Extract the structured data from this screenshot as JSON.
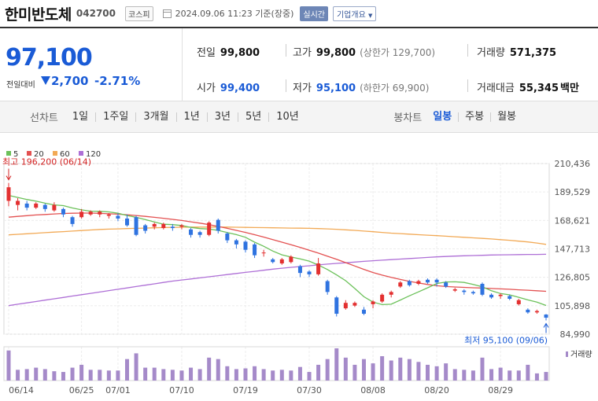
{
  "header": {
    "name": "한미반도체",
    "code": "042700",
    "market": "코스피",
    "datetime": "2024.09.06 11:23 기준(장중)",
    "realtime": "실시간",
    "company_info": "기업개요"
  },
  "quote": {
    "price": "97,100",
    "change_label": "전일대비",
    "change": "2,700",
    "rate": "-2.71%",
    "prev_label": "전일",
    "prev": "99,800",
    "open_label": "시가",
    "open": "99,400",
    "high_label": "고가",
    "high": "99,800",
    "upper_limit": "(상한가 129,700)",
    "low_label": "저가",
    "low": "95,100",
    "lower_limit": "(하한가 69,900)",
    "volume_label": "거래량",
    "volume": "571,375",
    "amount_label": "거래대금",
    "amount": "55,345",
    "amount_unit": "백만"
  },
  "period": {
    "label": "선차트",
    "items": [
      "1일",
      "1주일",
      "3개월",
      "1년",
      "3년",
      "5년",
      "10년"
    ],
    "bong_label": "봉차트",
    "bong_items": [
      "일봉",
      "주봉",
      "월봉"
    ],
    "bong_active": "일봉"
  },
  "colors": {
    "ma5": "#6cc15a",
    "ma20": "#e35151",
    "ma60": "#f2a955",
    "ma120": "#ae6fd6",
    "up": "#e33030",
    "down": "#2f73e0",
    "volume": "#a58ac9"
  },
  "chart_data": {
    "type": "candlestick",
    "legend": [
      "5",
      "20",
      "60",
      "120"
    ],
    "y_ticks": [
      "210,436",
      "189,529",
      "168,621",
      "147,713",
      "126,805",
      "105,898",
      "84,990"
    ],
    "ylim": [
      84990,
      210436
    ],
    "x_ticks": [
      "06/14",
      "06/25",
      "07/01",
      "07/10",
      "07/19",
      "07/30",
      "08/08",
      "08/20",
      "08/29"
    ],
    "x_tick_index": [
      0,
      8,
      12,
      19,
      26,
      33,
      40,
      47,
      54
    ],
    "high_annotation": "최고 196,200 (06/14)",
    "low_annotation": "최저 95,100 (09/06)",
    "volume_label": "거래량",
    "candles": [
      [
        183000,
        193000,
        196200,
        179000
      ],
      [
        180000,
        183000,
        185000,
        176000
      ],
      [
        181000,
        178000,
        183000,
        176000
      ],
      [
        178000,
        181000,
        182000,
        177000
      ],
      [
        180000,
        177000,
        181000,
        175000
      ],
      [
        176000,
        180000,
        182000,
        175000
      ],
      [
        177000,
        173000,
        178000,
        171000
      ],
      [
        171000,
        166000,
        172000,
        164000
      ],
      [
        171000,
        175000,
        177000,
        170000
      ],
      [
        173000,
        175000,
        176000,
        172000
      ],
      [
        173000,
        175000,
        176000,
        171000
      ],
      [
        172000,
        173000,
        174000,
        170000
      ],
      [
        172000,
        170000,
        174000,
        168000
      ],
      [
        170000,
        165000,
        173000,
        164000
      ],
      [
        171000,
        158000,
        172000,
        157000
      ],
      [
        165000,
        161000,
        166000,
        159000
      ],
      [
        164000,
        166000,
        167000,
        162000
      ],
      [
        163000,
        166000,
        167000,
        162000
      ],
      [
        164000,
        163000,
        166000,
        161000
      ],
      [
        164000,
        165000,
        166000,
        162000
      ],
      [
        162000,
        158000,
        163000,
        156000
      ],
      [
        160000,
        158000,
        161000,
        156000
      ],
      [
        158000,
        167000,
        168000,
        157000
      ],
      [
        169000,
        161000,
        170000,
        159000
      ],
      [
        159000,
        154000,
        160000,
        152000
      ],
      [
        154000,
        151000,
        155000,
        148000
      ],
      [
        153000,
        147000,
        154000,
        145000
      ],
      [
        151000,
        143000,
        152000,
        141000
      ],
      [
        145000,
        145000,
        147000,
        142000
      ],
      [
        140000,
        138000,
        141000,
        137000
      ],
      [
        137000,
        140000,
        141000,
        136000
      ],
      [
        138000,
        142000,
        143000,
        137000
      ],
      [
        135000,
        130000,
        136000,
        127000
      ],
      [
        131000,
        129000,
        132000,
        127000
      ],
      [
        129000,
        137000,
        141000,
        128000
      ],
      [
        124000,
        116000,
        125000,
        114000
      ],
      [
        112000,
        100000,
        113000,
        98000
      ],
      [
        104000,
        108000,
        110000,
        103000
      ],
      [
        106000,
        108000,
        109000,
        105000
      ],
      [
        103000,
        100000,
        105000,
        99000
      ],
      [
        107000,
        109000,
        110000,
        104000
      ],
      [
        109000,
        114000,
        115000,
        108000
      ],
      [
        114000,
        116000,
        117000,
        112000
      ],
      [
        120000,
        123000,
        124000,
        119000
      ],
      [
        124000,
        121000,
        125000,
        120000
      ],
      [
        122000,
        124000,
        125000,
        121000
      ],
      [
        125000,
        123000,
        126000,
        122000
      ],
      [
        125000,
        123000,
        126000,
        120000
      ],
      [
        123000,
        120000,
        124000,
        119000
      ],
      [
        117000,
        118000,
        119000,
        116000
      ],
      [
        117000,
        116000,
        118000,
        114000
      ],
      [
        116000,
        115000,
        117000,
        114000
      ],
      [
        122000,
        114000,
        123000,
        113000
      ],
      [
        114000,
        112000,
        115000,
        111000
      ],
      [
        113000,
        114000,
        115000,
        111000
      ],
      [
        113000,
        111000,
        114000,
        110000
      ],
      [
        107000,
        110000,
        111000,
        106000
      ],
      [
        103000,
        101000,
        104000,
        100000
      ],
      [
        101000,
        102000,
        103000,
        100000
      ],
      [
        99400,
        97100,
        99800,
        95100
      ]
    ],
    "ma5": [
      187000,
      185500,
      184000,
      182800,
      181300,
      180000,
      179500,
      177800,
      176400,
      175400,
      175300,
      174900,
      173900,
      172200,
      170900,
      169300,
      167500,
      165800,
      165500,
      164900,
      163500,
      162600,
      162300,
      161300,
      159700,
      158200,
      156200,
      152600,
      149600,
      146100,
      143300,
      141700,
      140400,
      138700,
      135800,
      132500,
      128600,
      124300,
      118600,
      112500,
      108600,
      106700,
      107000,
      110100,
      113200,
      116100,
      119100,
      122200,
      123400,
      123500,
      123000,
      121600,
      119800,
      116900,
      114900,
      113900,
      112100,
      110200,
      108500,
      106100
    ],
    "ma20": [
      171000,
      171600,
      172100,
      172600,
      173000,
      173400,
      173700,
      173900,
      174000,
      174000,
      173800,
      173500,
      173200,
      172800,
      172200,
      171600,
      170900,
      170200,
      169400,
      168600,
      167600,
      166600,
      165500,
      164200,
      162800,
      161300,
      159800,
      158100,
      156400,
      154500,
      152600,
      150700,
      148800,
      146700,
      144600,
      142300,
      140000,
      137600,
      135100,
      132600,
      130300,
      128400,
      126700,
      125200,
      123800,
      122600,
      121500,
      120600,
      120000,
      119700,
      119400,
      119100,
      118900,
      118600,
      118300,
      118000,
      117600,
      117300,
      116900,
      116500
    ],
    "ma60": [
      158000,
      158400,
      158800,
      159200,
      159600,
      160000,
      160400,
      160800,
      161200,
      161600,
      162000,
      162200,
      162400,
      162600,
      162800,
      163000,
      163200,
      163400,
      163500,
      163600,
      163700,
      163700,
      163700,
      163700,
      163700,
      163600,
      163500,
      163400,
      163300,
      163200,
      163100,
      163000,
      162900,
      162800,
      162600,
      162400,
      162100,
      161700,
      161300,
      160800,
      160300,
      159800,
      159300,
      158900,
      158500,
      158100,
      157800,
      157400,
      157000,
      156600,
      156200,
      155800,
      155400,
      155000,
      154500,
      154000,
      153400,
      152800,
      152000,
      151000
    ],
    "ma120": [
      106000,
      107000,
      108000,
      109000,
      110000,
      111000,
      112000,
      113000,
      114000,
      115000,
      116000,
      117000,
      118000,
      119000,
      120000,
      121000,
      122000,
      123000,
      124000,
      124800,
      125600,
      126400,
      127200,
      128000,
      128800,
      129600,
      130400,
      131200,
      132000,
      132800,
      133500,
      134100,
      134700,
      135300,
      135900,
      136500,
      137000,
      137500,
      138000,
      138500,
      139000,
      139400,
      139800,
      140200,
      140600,
      141000,
      141400,
      141800,
      142100,
      142400,
      142600,
      142800,
      143000,
      143200,
      143300,
      143400,
      143500,
      143600,
      143600,
      143700
    ],
    "volume": [
      42,
      15,
      16,
      18,
      16,
      13,
      12,
      18,
      22,
      15,
      15,
      14,
      14,
      30,
      38,
      18,
      18,
      16,
      15,
      14,
      18,
      16,
      32,
      30,
      20,
      16,
      17,
      20,
      16,
      14,
      15,
      14,
      19,
      12,
      22,
      30,
      45,
      32,
      22,
      30,
      24,
      34,
      28,
      32,
      30,
      26,
      22,
      20,
      24,
      16,
      15,
      14,
      32,
      16,
      18,
      14,
      14,
      22,
      10,
      12
    ]
  }
}
